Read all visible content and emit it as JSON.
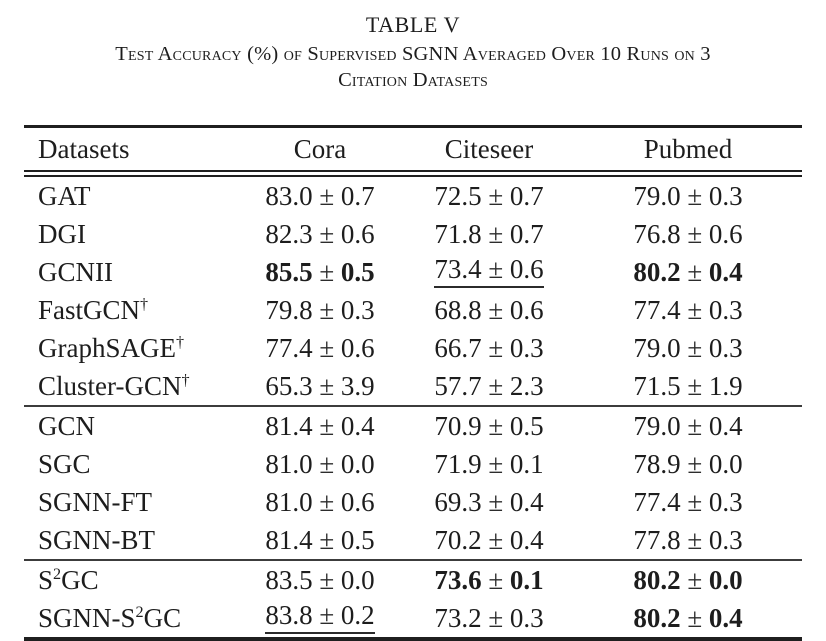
{
  "page": {
    "title": "TABLE V",
    "caption_line1": "Test Accuracy (%) of Supervised SGNN Averaged Over 10 Runs on 3",
    "caption_line2": "Citation Datasets"
  },
  "table": {
    "plus_minus": "±",
    "headers": [
      "Datasets",
      "Cora",
      "Citeseer",
      "Pubmed"
    ],
    "groups": [
      {
        "rows": [
          {
            "name": [
              {
                "t": "GAT"
              }
            ],
            "cells": [
              {
                "val": "83.0",
                "err": "0.7",
                "bold": false,
                "underline": false
              },
              {
                "val": "72.5",
                "err": "0.7",
                "bold": false,
                "underline": false
              },
              {
                "val": "79.0",
                "err": "0.3",
                "bold": false,
                "underline": false
              }
            ]
          },
          {
            "name": [
              {
                "t": "DGI"
              }
            ],
            "cells": [
              {
                "val": "82.3",
                "err": "0.6",
                "bold": false,
                "underline": false
              },
              {
                "val": "71.8",
                "err": "0.7",
                "bold": false,
                "underline": false
              },
              {
                "val": "76.8",
                "err": "0.6",
                "bold": false,
                "underline": false
              }
            ]
          },
          {
            "name": [
              {
                "t": "GCNII"
              }
            ],
            "cells": [
              {
                "val": "85.5",
                "err": "0.5",
                "bold": true,
                "underline": false
              },
              {
                "val": "73.4",
                "err": "0.6",
                "bold": false,
                "underline": true
              },
              {
                "val": "80.2",
                "err": "0.4",
                "bold": true,
                "underline": false
              }
            ]
          },
          {
            "name": [
              {
                "t": "FastGCN"
              },
              {
                "t": "†",
                "sup": true
              }
            ],
            "cells": [
              {
                "val": "79.8",
                "err": "0.3",
                "bold": false,
                "underline": false
              },
              {
                "val": "68.8",
                "err": "0.6",
                "bold": false,
                "underline": false
              },
              {
                "val": "77.4",
                "err": "0.3",
                "bold": false,
                "underline": false
              }
            ]
          },
          {
            "name": [
              {
                "t": "GraphSAGE"
              },
              {
                "t": "†",
                "sup": true
              }
            ],
            "cells": [
              {
                "val": "77.4",
                "err": "0.6",
                "bold": false,
                "underline": false
              },
              {
                "val": "66.7",
                "err": "0.3",
                "bold": false,
                "underline": false
              },
              {
                "val": "79.0",
                "err": "0.3",
                "bold": false,
                "underline": false
              }
            ]
          },
          {
            "name": [
              {
                "t": "Cluster-GCN"
              },
              {
                "t": "†",
                "sup": true
              }
            ],
            "cells": [
              {
                "val": "65.3",
                "err": "3.9",
                "bold": false,
                "underline": false
              },
              {
                "val": "57.7",
                "err": "2.3",
                "bold": false,
                "underline": false
              },
              {
                "val": "71.5",
                "err": "1.9",
                "bold": false,
                "underline": false
              }
            ]
          }
        ]
      },
      {
        "rows": [
          {
            "name": [
              {
                "t": "GCN"
              }
            ],
            "cells": [
              {
                "val": "81.4",
                "err": "0.4",
                "bold": false,
                "underline": false
              },
              {
                "val": "70.9",
                "err": "0.5",
                "bold": false,
                "underline": false
              },
              {
                "val": "79.0",
                "err": "0.4",
                "bold": false,
                "underline": false
              }
            ]
          },
          {
            "name": [
              {
                "t": "SGC"
              }
            ],
            "cells": [
              {
                "val": "81.0",
                "err": "0.0",
                "bold": false,
                "underline": false
              },
              {
                "val": "71.9",
                "err": "0.1",
                "bold": false,
                "underline": false
              },
              {
                "val": "78.9",
                "err": "0.0",
                "bold": false,
                "underline": false
              }
            ]
          },
          {
            "name": [
              {
                "t": "SGNN-FT"
              }
            ],
            "cells": [
              {
                "val": "81.0",
                "err": "0.6",
                "bold": false,
                "underline": false
              },
              {
                "val": "69.3",
                "err": "0.4",
                "bold": false,
                "underline": false
              },
              {
                "val": "77.4",
                "err": "0.3",
                "bold": false,
                "underline": false
              }
            ]
          },
          {
            "name": [
              {
                "t": "SGNN-BT"
              }
            ],
            "cells": [
              {
                "val": "81.4",
                "err": "0.5",
                "bold": false,
                "underline": false
              },
              {
                "val": "70.2",
                "err": "0.4",
                "bold": false,
                "underline": false
              },
              {
                "val": "77.8",
                "err": "0.3",
                "bold": false,
                "underline": false
              }
            ]
          }
        ]
      },
      {
        "rows": [
          {
            "name": [
              {
                "t": "S"
              },
              {
                "t": "2",
                "sup": true
              },
              {
                "t": "GC"
              }
            ],
            "cells": [
              {
                "val": "83.5",
                "err": "0.0",
                "bold": false,
                "underline": false
              },
              {
                "val": "73.6",
                "err": "0.1",
                "bold": true,
                "underline": false
              },
              {
                "val": "80.2",
                "err": "0.0",
                "bold": true,
                "underline": false
              }
            ]
          },
          {
            "name": [
              {
                "t": "SGNN-S"
              },
              {
                "t": "2",
                "sup": true
              },
              {
                "t": "GC"
              }
            ],
            "cells": [
              {
                "val": "83.8",
                "err": "0.2",
                "bold": false,
                "underline": true
              },
              {
                "val": "73.2",
                "err": "0.3",
                "bold": false,
                "underline": false
              },
              {
                "val": "80.2",
                "err": "0.4",
                "bold": true,
                "underline": false
              }
            ]
          }
        ]
      }
    ]
  }
}
